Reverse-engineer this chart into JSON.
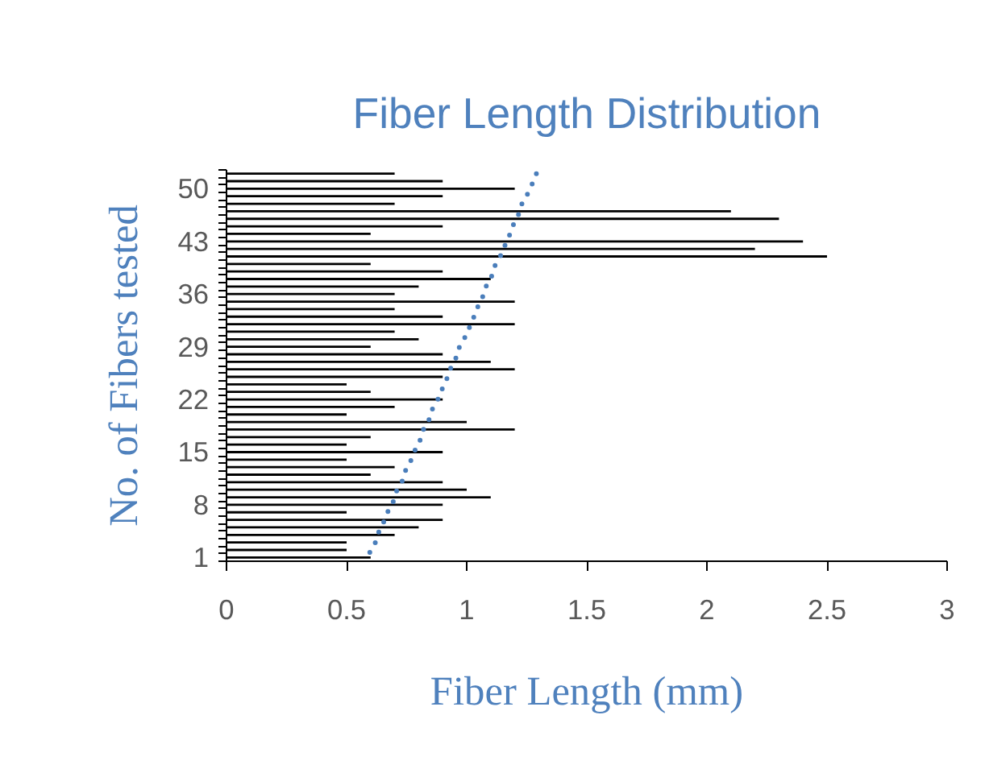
{
  "chart_data": {
    "type": "bar",
    "orientation": "horizontal",
    "title": "Fiber Length Distribution",
    "xlabel": "Fiber Length (mm)",
    "ylabel": "No. of Fibers tested",
    "categories": [
      null,
      null,
      "50",
      null,
      null,
      null,
      null,
      null,
      null,
      "43",
      null,
      null,
      null,
      null,
      null,
      null,
      "36",
      null,
      null,
      null,
      null,
      null,
      null,
      "29",
      null,
      null,
      null,
      null,
      null,
      null,
      "22",
      null,
      null,
      null,
      null,
      null,
      null,
      "15",
      null,
      null,
      null,
      null,
      null,
      null,
      "8",
      null,
      null,
      null,
      null,
      null,
      null,
      "1"
    ],
    "series": [
      {
        "color": "#000000",
        "values": [
          0.7,
          0.9,
          1.2,
          0.9,
          0.7,
          2.1,
          2.3,
          0.9,
          0.6,
          2.4,
          2.2,
          2.5,
          0.6,
          0.9,
          1.1,
          0.8,
          0.7,
          1.2,
          0.7,
          0.9,
          1.2,
          0.7,
          0.8,
          0.6,
          0.9,
          1.1,
          1.2,
          0.9,
          0.5,
          0.6,
          0.9,
          0.7,
          0.5,
          1.0,
          1.2,
          0.6,
          0.5,
          0.9,
          0.5,
          0.7,
          0.6,
          0.9,
          1.0,
          1.1,
          0.9,
          0.5,
          0.9,
          0.8,
          0.7,
          0.5,
          0.5,
          0.6
        ]
      },
      {
        "type": "line",
        "line_style": "dotted",
        "color": "#4a7ebb",
        "values": [
          1.29,
          1.28,
          1.26,
          1.25,
          1.23,
          1.22,
          1.21,
          1.19,
          1.18,
          1.17,
          1.15,
          1.14,
          1.12,
          1.11,
          1.1,
          1.08,
          1.07,
          1.06,
          1.04,
          1.03,
          1.02,
          1.0,
          0.99,
          0.97,
          0.96,
          0.95,
          0.93,
          0.92,
          0.91,
          0.89,
          0.88,
          0.86,
          0.85,
          0.84,
          0.82,
          0.81,
          0.8,
          0.78,
          0.77,
          0.75,
          0.74,
          0.73,
          0.71,
          0.7,
          0.69,
          0.67,
          0.66,
          0.64,
          0.63,
          0.62,
          0.6,
          0.59
        ]
      }
    ],
    "xlim": [
      0,
      3
    ],
    "xticks": [
      0,
      0.5,
      1,
      1.5,
      2,
      2.5,
      3
    ],
    "grid": false
  }
}
